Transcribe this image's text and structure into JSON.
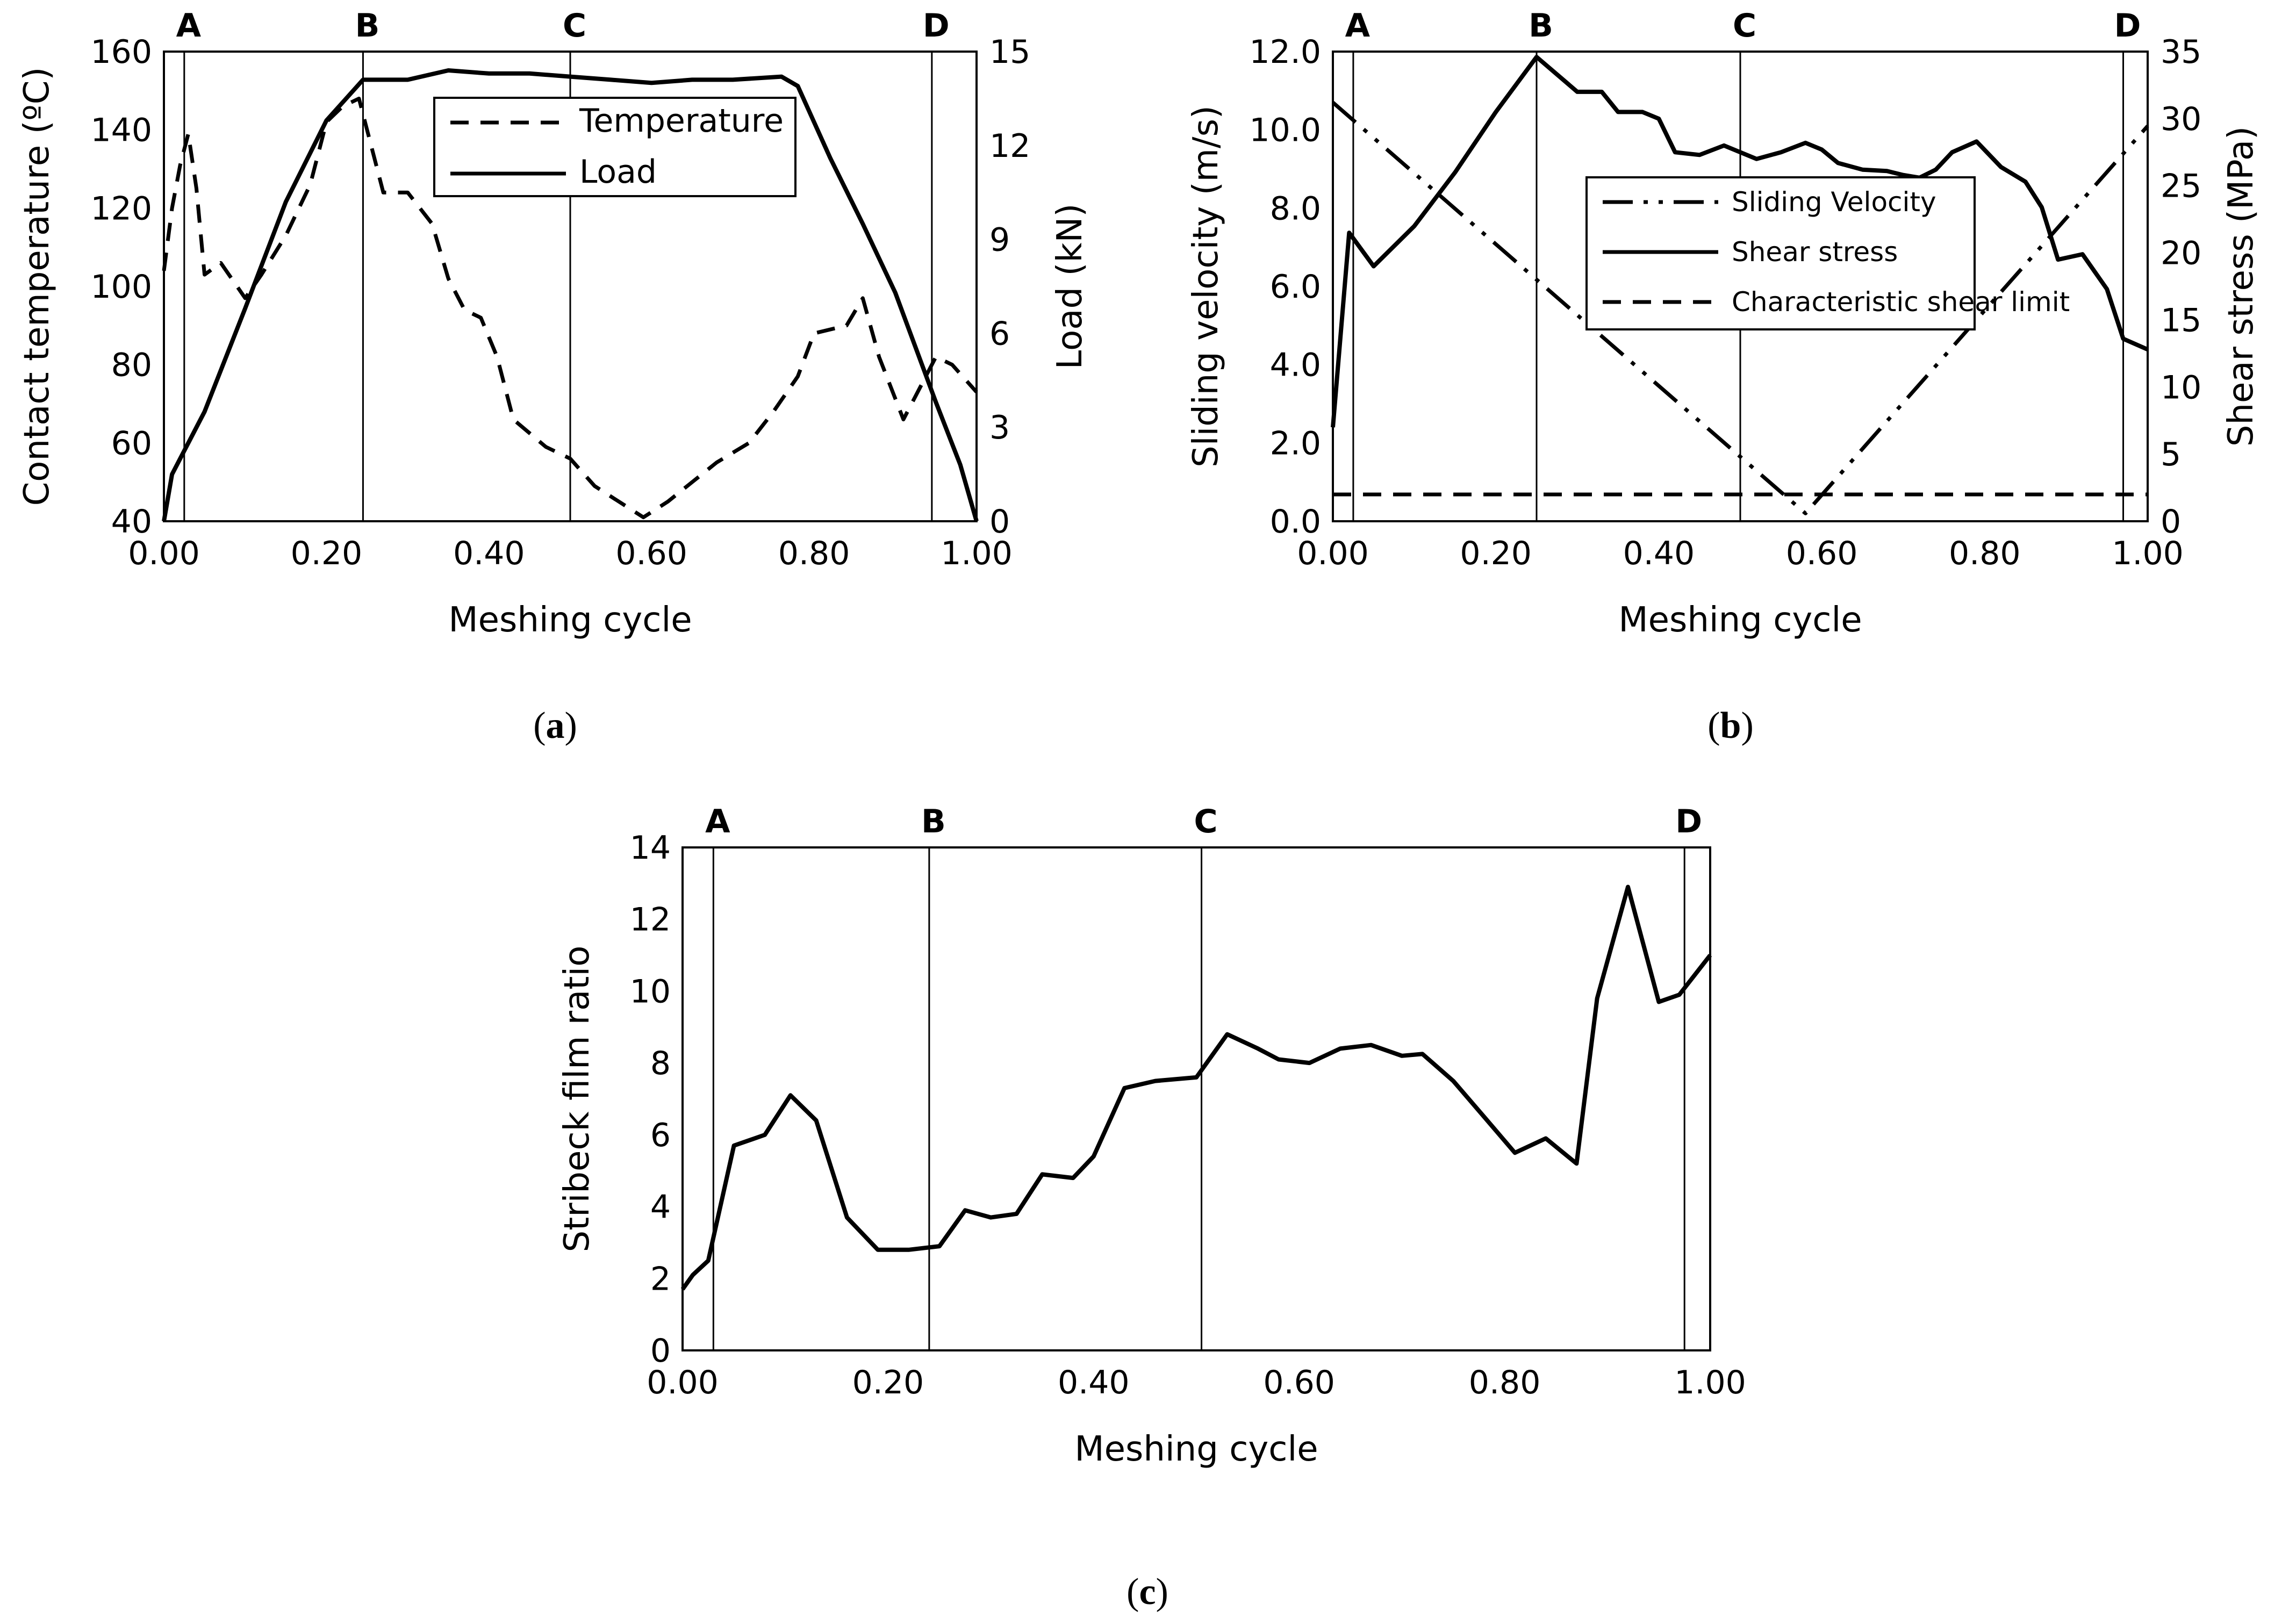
{
  "chart_data": [
    {
      "id": "a",
      "type": "line",
      "caption_letter": "a",
      "xlabel": "Meshing cycle",
      "ylabel": "Contact temperature (ºC)",
      "y2label": "Load (kN)",
      "xlim": [
        0,
        1
      ],
      "ylim": [
        40,
        160
      ],
      "y2lim": [
        0,
        15
      ],
      "xticks": [
        "0.00",
        "0.20",
        "0.40",
        "0.60",
        "0.80",
        "1.00"
      ],
      "yticks": [
        "40",
        "60",
        "80",
        "100",
        "120",
        "140",
        "160"
      ],
      "y2ticks": [
        "0",
        "3",
        "6",
        "9",
        "12",
        "15"
      ],
      "markers": [
        {
          "label": "A",
          "x": 0.025
        },
        {
          "label": "B",
          "x": 0.245
        },
        {
          "label": "C",
          "x": 0.5
        },
        {
          "label": "D",
          "x": 0.945
        }
      ],
      "legend": {
        "position": "top-center",
        "entries": [
          "Temperature",
          "Load"
        ]
      },
      "series": [
        {
          "name": "Temperature",
          "axis": "left",
          "style": "dashed",
          "points": [
            [
              0,
              104
            ],
            [
              0.01,
              120
            ],
            [
              0.02,
              131
            ],
            [
              0.03,
              139
            ],
            [
              0.04,
              125
            ],
            [
              0.05,
              103
            ],
            [
              0.07,
              106
            ],
            [
              0.09,
              100
            ],
            [
              0.1,
              97
            ],
            [
              0.12,
              103
            ],
            [
              0.15,
              113
            ],
            [
              0.18,
              126
            ],
            [
              0.2,
              142
            ],
            [
              0.22,
              146
            ],
            [
              0.24,
              148
            ],
            [
              0.25,
              140
            ],
            [
              0.27,
              124
            ],
            [
              0.3,
              124
            ],
            [
              0.33,
              116
            ],
            [
              0.35,
              102
            ],
            [
              0.37,
              94
            ],
            [
              0.39,
              92
            ],
            [
              0.41,
              82
            ],
            [
              0.43,
              66
            ],
            [
              0.47,
              59
            ],
            [
              0.5,
              56
            ],
            [
              0.53,
              49
            ],
            [
              0.56,
              45
            ],
            [
              0.59,
              41
            ],
            [
              0.62,
              45
            ],
            [
              0.65,
              50
            ],
            [
              0.68,
              55
            ],
            [
              0.72,
              60
            ],
            [
              0.75,
              68
            ],
            [
              0.78,
              77
            ],
            [
              0.8,
              88
            ],
            [
              0.84,
              90
            ],
            [
              0.86,
              97
            ],
            [
              0.88,
              82
            ],
            [
              0.91,
              66
            ],
            [
              0.93,
              74
            ],
            [
              0.95,
              82
            ],
            [
              0.97,
              80
            ],
            [
              1.0,
              73
            ]
          ]
        },
        {
          "name": "Load",
          "axis": "right",
          "style": "solid",
          "points": [
            [
              0,
              0
            ],
            [
              0.01,
              1.5
            ],
            [
              0.05,
              3.5
            ],
            [
              0.1,
              6.8
            ],
            [
              0.15,
              10.2
            ],
            [
              0.2,
              12.8
            ],
            [
              0.245,
              14.1
            ],
            [
              0.3,
              14.1
            ],
            [
              0.35,
              14.4
            ],
            [
              0.4,
              14.3
            ],
            [
              0.45,
              14.3
            ],
            [
              0.5,
              14.2
            ],
            [
              0.55,
              14.1
            ],
            [
              0.6,
              14.0
            ],
            [
              0.65,
              14.1
            ],
            [
              0.7,
              14.1
            ],
            [
              0.76,
              14.2
            ],
            [
              0.78,
              13.9
            ],
            [
              0.82,
              11.6
            ],
            [
              0.86,
              9.5
            ],
            [
              0.9,
              7.3
            ],
            [
              0.95,
              3.8
            ],
            [
              0.98,
              1.8
            ],
            [
              1.0,
              0
            ]
          ]
        }
      ]
    },
    {
      "id": "b",
      "type": "line",
      "caption_letter": "b",
      "xlabel": "Meshing cycle",
      "ylabel": "Sliding velocity (m/s)",
      "y2label": "Shear stress (MPa)",
      "xlim": [
        0,
        1
      ],
      "ylim": [
        0,
        12
      ],
      "y2lim": [
        0,
        35
      ],
      "xticks": [
        "0.00",
        "0.20",
        "0.40",
        "0.60",
        "0.80",
        "1.00"
      ],
      "yticks": [
        "0.0",
        "2.0",
        "4.0",
        "6.0",
        "8.0",
        "10.0",
        "12.0"
      ],
      "y2ticks": [
        "0",
        "5",
        "10",
        "15",
        "20",
        "25",
        "30",
        "35"
      ],
      "markers": [
        {
          "label": "A",
          "x": 0.025
        },
        {
          "label": "B",
          "x": 0.25
        },
        {
          "label": "C",
          "x": 0.5
        },
        {
          "label": "D",
          "x": 0.97
        }
      ],
      "legend": {
        "position": "center-right",
        "entries": [
          "Sliding Velocity",
          "Shear stress",
          "Characteristic shear limit"
        ]
      },
      "series": [
        {
          "name": "Sliding Velocity",
          "axis": "left",
          "style": "dash-dot-dot",
          "points": [
            [
              0,
              10.7
            ],
            [
              0.58,
              0.2
            ],
            [
              1.0,
              10.1
            ]
          ]
        },
        {
          "name": "Shear stress",
          "axis": "right",
          "style": "solid",
          "points": [
            [
              0,
              7
            ],
            [
              0.02,
              21.5
            ],
            [
              0.05,
              19
            ],
            [
              0.1,
              22
            ],
            [
              0.15,
              26
            ],
            [
              0.2,
              30.5
            ],
            [
              0.25,
              34.6
            ],
            [
              0.3,
              32
            ],
            [
              0.33,
              32
            ],
            [
              0.35,
              30.5
            ],
            [
              0.38,
              30.5
            ],
            [
              0.4,
              30
            ],
            [
              0.42,
              27.5
            ],
            [
              0.45,
              27.3
            ],
            [
              0.48,
              28
            ],
            [
              0.5,
              27.5
            ],
            [
              0.52,
              27
            ],
            [
              0.55,
              27.5
            ],
            [
              0.58,
              28.2
            ],
            [
              0.6,
              27.7
            ],
            [
              0.62,
              26.7
            ],
            [
              0.65,
              26.2
            ],
            [
              0.68,
              26.1
            ],
            [
              0.7,
              25.8
            ],
            [
              0.72,
              25.6
            ],
            [
              0.74,
              26.2
            ],
            [
              0.76,
              27.5
            ],
            [
              0.79,
              28.3
            ],
            [
              0.82,
              26.4
            ],
            [
              0.85,
              25.3
            ],
            [
              0.87,
              23.4
            ],
            [
              0.89,
              19.5
            ],
            [
              0.92,
              19.9
            ],
            [
              0.95,
              17.3
            ],
            [
              0.97,
              13.6
            ],
            [
              1.0,
              12.8
            ]
          ]
        },
        {
          "name": "Characteristic shear limit",
          "axis": "right",
          "style": "dashed",
          "points": [
            [
              0,
              2
            ],
            [
              1.0,
              2
            ]
          ]
        }
      ]
    },
    {
      "id": "c",
      "type": "line",
      "caption_letter": "c",
      "xlabel": "Meshing cycle",
      "ylabel": "Stribeck film ratio",
      "xlim": [
        0,
        1
      ],
      "ylim": [
        0,
        14
      ],
      "xticks": [
        "0.00",
        "0.20",
        "0.40",
        "0.60",
        "0.80",
        "1.00"
      ],
      "yticks": [
        "0",
        "2",
        "4",
        "6",
        "8",
        "10",
        "12",
        "14"
      ],
      "markers": [
        {
          "label": "A",
          "x": 0.03
        },
        {
          "label": "B",
          "x": 0.24
        },
        {
          "label": "C",
          "x": 0.505
        },
        {
          "label": "D",
          "x": 0.975
        }
      ],
      "series": [
        {
          "name": "Stribeck film ratio",
          "axis": "left",
          "style": "solid",
          "points": [
            [
              0,
              1.7
            ],
            [
              0.01,
              2.1
            ],
            [
              0.025,
              2.5
            ],
            [
              0.05,
              5.7
            ],
            [
              0.08,
              6.0
            ],
            [
              0.105,
              7.1
            ],
            [
              0.13,
              6.4
            ],
            [
              0.16,
              3.7
            ],
            [
              0.19,
              2.8
            ],
            [
              0.22,
              2.8
            ],
            [
              0.25,
              2.9
            ],
            [
              0.275,
              3.9
            ],
            [
              0.3,
              3.7
            ],
            [
              0.325,
              3.8
            ],
            [
              0.35,
              4.9
            ],
            [
              0.38,
              4.8
            ],
            [
              0.4,
              5.4
            ],
            [
              0.43,
              7.3
            ],
            [
              0.46,
              7.5
            ],
            [
              0.5,
              7.6
            ],
            [
              0.53,
              8.8
            ],
            [
              0.56,
              8.4
            ],
            [
              0.58,
              8.1
            ],
            [
              0.61,
              8.0
            ],
            [
              0.64,
              8.4
            ],
            [
              0.67,
              8.5
            ],
            [
              0.7,
              8.2
            ],
            [
              0.72,
              8.25
            ],
            [
              0.75,
              7.5
            ],
            [
              0.78,
              6.5
            ],
            [
              0.81,
              5.5
            ],
            [
              0.84,
              5.9
            ],
            [
              0.87,
              5.2
            ],
            [
              0.89,
              9.8
            ],
            [
              0.92,
              12.9
            ],
            [
              0.95,
              9.7
            ],
            [
              0.97,
              9.9
            ],
            [
              1.0,
              11.0
            ]
          ]
        }
      ]
    }
  ]
}
